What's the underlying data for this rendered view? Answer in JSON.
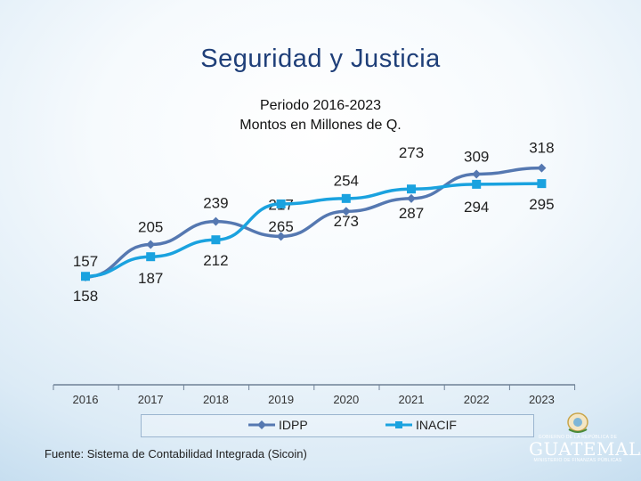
{
  "title": "Seguridad y Justicia",
  "subtitle_line1": "Periodo 2016-2023",
  "subtitle_line2": "Montos en Millones de Q.",
  "source": "Fuente: Sistema de Contabilidad Integrada (Sicoin)",
  "logo": {
    "top_text": "GOBIERNO DE LA REPÚBLICA DE",
    "name": "GUATEMALA",
    "bottom_text": "MINISTERIO DE FINANZAS PÚBLICAS"
  },
  "colors": {
    "idpp": "#5578b1",
    "inacif": "#1aa2df",
    "title": "#1f3f79",
    "axis": "#6f8196"
  },
  "chart_data": {
    "type": "line",
    "title": "Seguridad y Justicia",
    "subtitle": "Periodo 2016-2023 Montos en Millones de Q.",
    "categories": [
      "2016",
      "2017",
      "2018",
      "2019",
      "2020",
      "2021",
      "2022",
      "2023"
    ],
    "series": [
      {
        "name": "IDPP",
        "marker": "diamond",
        "values": [
          157,
          205,
          239,
          217,
          254,
          273,
          309,
          318
        ]
      },
      {
        "name": "INACIF",
        "marker": "square",
        "values": [
          158,
          187,
          212,
          265,
          273,
          287,
          294,
          295
        ]
      }
    ],
    "ylim": [
      0,
      350
    ],
    "legend": "bottom",
    "grid": false,
    "xlabel": "",
    "ylabel": ""
  }
}
